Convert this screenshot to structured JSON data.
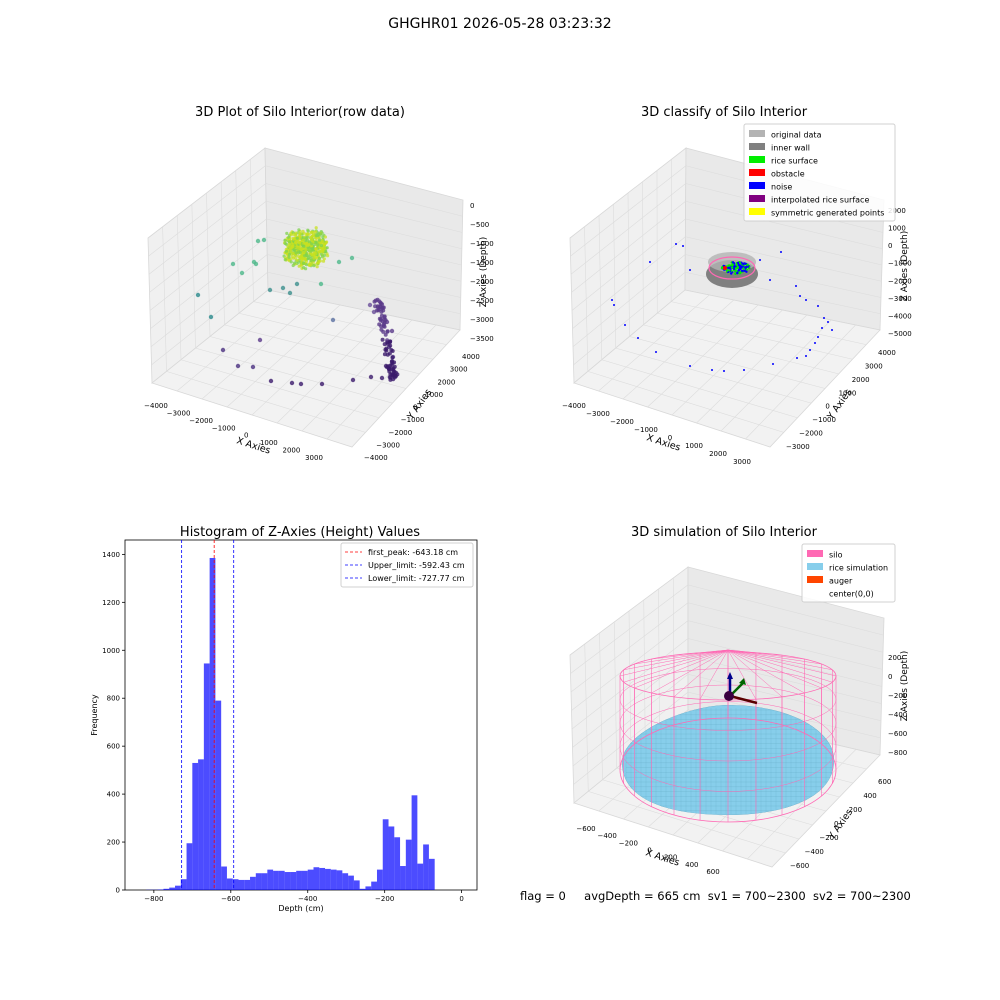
{
  "suptitle": "GHGHR01 2026-05-28 03:23:32",
  "status": {
    "flag": "flag = 0",
    "avg_depth": "avgDepth = 665 cm",
    "sv1": "sv1 = 700~2300",
    "sv2": "sv2 = 700~2300"
  },
  "chart_data": [
    {
      "type": "scatter",
      "panel": "raw",
      "title": "3D Plot of Silo Interior(row data)",
      "xlabel": "X Axies",
      "ylabel": "Y Axies",
      "zlabel": "Z Axies (Depth)",
      "xticks": [
        "−4000",
        "−3000",
        "−2000",
        "−1000",
        "0",
        "1000",
        "2000",
        "3000"
      ],
      "yticks": [
        "−4000",
        "−3000",
        "−2000",
        "−1000",
        "0",
        "1000",
        "2000",
        "3000",
        "4000"
      ],
      "zticks": [
        "0",
        "−500",
        "−1000",
        "−1500",
        "−2000",
        "−2500",
        "−3000",
        "−3500"
      ],
      "colormap": "viridis",
      "colors": {
        "low": "#3b1a6b",
        "mid": "#2a8a8c",
        "high": "#c8e020"
      }
    },
    {
      "type": "scatter",
      "panel": "classify",
      "title": "3D classify of Silo Interior",
      "xlabel": "X Axies",
      "ylabel": "Y Axies",
      "zlabel": "Z Axies (Depth)",
      "xticks": [
        "−4000",
        "−3000",
        "−2000",
        "−1000",
        "0",
        "1000",
        "2000",
        "3000"
      ],
      "yticks": [
        "−3000",
        "−2000",
        "−1000",
        "0",
        "1000",
        "2000",
        "3000",
        "4000"
      ],
      "zticks": [
        "2000",
        "1000",
        "0",
        "−1000",
        "−2000",
        "−3000",
        "−4000",
        "−5000"
      ],
      "legend_position": "top-right",
      "legend": [
        {
          "label": "original data",
          "color": "#b3b3b3"
        },
        {
          "label": "inner wall",
          "color": "#808080"
        },
        {
          "label": "rice surface",
          "color": "#00ee00"
        },
        {
          "label": "obstacle",
          "color": "#ff0000"
        },
        {
          "label": "noise",
          "color": "#0000ff"
        },
        {
          "label": "interpolated rice surface",
          "color": "#800080"
        },
        {
          "label": "symmetric generated points",
          "color": "#ffff00"
        }
      ]
    },
    {
      "type": "bar",
      "panel": "histogram",
      "title": "Histogram of Z-Axies (Height) Values",
      "xlabel": "Depth (cm)",
      "ylabel": "Frequency",
      "xlim": [
        -875,
        40
      ],
      "ylim": [
        0,
        1460
      ],
      "xticks": [
        -800,
        -600,
        -400,
        -200,
        0
      ],
      "yticks": [
        0,
        200,
        400,
        600,
        800,
        1000,
        1200,
        1400
      ],
      "bar_color": "#0000ff",
      "bins": [
        {
          "x0": -820,
          "x1": -805,
          "count": 1
        },
        {
          "x0": -805,
          "x1": -790,
          "count": 1
        },
        {
          "x0": -790,
          "x1": -775,
          "count": 2
        },
        {
          "x0": -775,
          "x1": -760,
          "count": 5
        },
        {
          "x0": -760,
          "x1": -745,
          "count": 10
        },
        {
          "x0": -745,
          "x1": -730,
          "count": 18
        },
        {
          "x0": -730,
          "x1": -715,
          "count": 45
        },
        {
          "x0": -715,
          "x1": -700,
          "count": 195
        },
        {
          "x0": -700,
          "x1": -685,
          "count": 530
        },
        {
          "x0": -685,
          "x1": -670,
          "count": 545
        },
        {
          "x0": -670,
          "x1": -655,
          "count": 945
        },
        {
          "x0": -655,
          "x1": -640,
          "count": 1385
        },
        {
          "x0": -640,
          "x1": -625,
          "count": 790
        },
        {
          "x0": -625,
          "x1": -610,
          "count": 98
        },
        {
          "x0": -610,
          "x1": -595,
          "count": 48
        },
        {
          "x0": -595,
          "x1": -580,
          "count": 45
        },
        {
          "x0": -580,
          "x1": -565,
          "count": 42
        },
        {
          "x0": -565,
          "x1": -550,
          "count": 42
        },
        {
          "x0": -550,
          "x1": -535,
          "count": 55
        },
        {
          "x0": -535,
          "x1": -520,
          "count": 70
        },
        {
          "x0": -520,
          "x1": -505,
          "count": 70
        },
        {
          "x0": -505,
          "x1": -490,
          "count": 85
        },
        {
          "x0": -490,
          "x1": -475,
          "count": 80
        },
        {
          "x0": -475,
          "x1": -460,
          "count": 80
        },
        {
          "x0": -460,
          "x1": -445,
          "count": 75
        },
        {
          "x0": -445,
          "x1": -430,
          "count": 75
        },
        {
          "x0": -430,
          "x1": -415,
          "count": 80
        },
        {
          "x0": -415,
          "x1": -400,
          "count": 80
        },
        {
          "x0": -400,
          "x1": -385,
          "count": 85
        },
        {
          "x0": -385,
          "x1": -370,
          "count": 95
        },
        {
          "x0": -370,
          "x1": -355,
          "count": 92
        },
        {
          "x0": -355,
          "x1": -340,
          "count": 88
        },
        {
          "x0": -340,
          "x1": -325,
          "count": 85
        },
        {
          "x0": -325,
          "x1": -310,
          "count": 82
        },
        {
          "x0": -310,
          "x1": -295,
          "count": 70
        },
        {
          "x0": -295,
          "x1": -280,
          "count": 60
        },
        {
          "x0": -280,
          "x1": -265,
          "count": 40
        },
        {
          "x0": -265,
          "x1": -250,
          "count": 5
        },
        {
          "x0": -250,
          "x1": -235,
          "count": 15
        },
        {
          "x0": -235,
          "x1": -220,
          "count": 35
        },
        {
          "x0": -220,
          "x1": -205,
          "count": 85
        },
        {
          "x0": -205,
          "x1": -190,
          "count": 295
        },
        {
          "x0": -190,
          "x1": -175,
          "count": 265
        },
        {
          "x0": -175,
          "x1": -160,
          "count": 220
        },
        {
          "x0": -160,
          "x1": -145,
          "count": 100
        },
        {
          "x0": -145,
          "x1": -130,
          "count": 210
        },
        {
          "x0": -130,
          "x1": -115,
          "count": 395
        },
        {
          "x0": -115,
          "x1": -100,
          "count": 110
        },
        {
          "x0": -100,
          "x1": -85,
          "count": 190
        },
        {
          "x0": -85,
          "x1": -70,
          "count": 130
        }
      ],
      "vlines": [
        {
          "label": "first_peak: -643.18 cm",
          "x": -643.18,
          "color": "#ff0000"
        },
        {
          "label": "Upper_limit: -592.43 cm",
          "x": -592.43,
          "color": "#0000ff"
        },
        {
          "label": "Lower_limit: -727.77 cm",
          "x": -727.77,
          "color": "#0000ff"
        }
      ],
      "legend_position": "top-right"
    },
    {
      "type": "surface",
      "panel": "simulation",
      "title": "3D simulation of Silo Interior",
      "xlabel": "X Axies",
      "ylabel": "Y Axies",
      "zlabel": "Z Axies (Depth)",
      "xticks": [
        "−600",
        "−400",
        "−200",
        "0",
        "200",
        "400",
        "600"
      ],
      "yticks": [
        "−600",
        "−400",
        "−200",
        "0",
        "200",
        "400",
        "600"
      ],
      "zticks": [
        "200",
        "0",
        "−200",
        "−400",
        "−600",
        "−800"
      ],
      "legend_position": "top-right",
      "legend": [
        {
          "label": "silo",
          "color": "#ff69b4"
        },
        {
          "label": "rice simulation",
          "color": "#87ceeb"
        },
        {
          "label": "auger",
          "color": "#ff4500"
        },
        {
          "label": "center(0,0)",
          "color": ""
        }
      ]
    }
  ]
}
